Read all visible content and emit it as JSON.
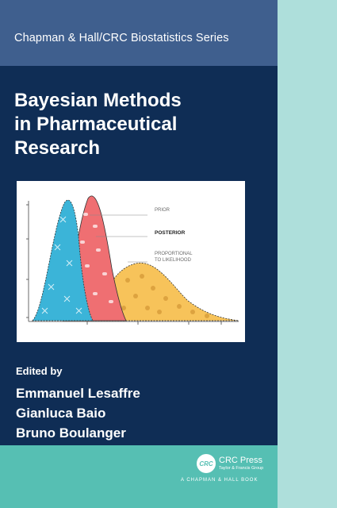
{
  "series": "Chapman & Hall/CRC Biostatistics Series",
  "title_lines": [
    "Bayesian Methods",
    "in Pharmaceutical",
    "Research"
  ],
  "figure": {
    "labels": {
      "prior": "PRIOR",
      "posterior": "POSTERIOR",
      "likelihood_line1": "PROPORTIONAL",
      "likelihood_line2": "TO LIKELIHOOD"
    },
    "colors": {
      "prior": "#3bb4d8",
      "posterior": "#ef6f72",
      "likelihood": "#f7c35a"
    }
  },
  "edited_by": "Edited by",
  "editors": [
    "Emmanuel Lesaffre",
    "Gianluca Baio",
    "Bruno Boulanger"
  ],
  "publisher": {
    "logo_text": "CRC",
    "name": "CRC Press",
    "sub": "Taylor & Francis Group",
    "imprint": "A CHAPMAN & HALL BOOK"
  },
  "colors": {
    "navy": "#0f2d55",
    "series_band": "#3f5f8e",
    "teal": "#56bfb3",
    "spine": "#aedfdb"
  }
}
